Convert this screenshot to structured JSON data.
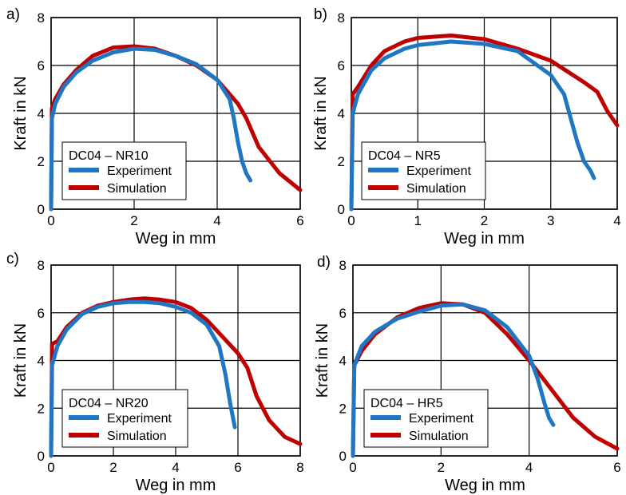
{
  "colors": {
    "experiment": "#1f77c4",
    "simulation": "#c00000",
    "grid": "#000000"
  },
  "chart_data": [
    {
      "panel_label": "a)",
      "type": "line",
      "xlabel": "Weg in mm",
      "ylabel": "Kraft in kN",
      "xlim": [
        0,
        6
      ],
      "ylim": [
        0,
        8
      ],
      "xticks": [
        "0",
        "2",
        "4",
        "6"
      ],
      "yticks": [
        "0",
        "2",
        "4",
        "6",
        "8"
      ],
      "grid": true,
      "legend_title": "DC04 – NR10",
      "legend_position": "bottom-left",
      "series": [
        {
          "name": "Experiment",
          "color": "#1f77c4",
          "x": [
            0,
            0.02,
            0.1,
            0.3,
            0.6,
            1.0,
            1.5,
            2.0,
            2.5,
            3.0,
            3.5,
            4.0,
            4.3,
            4.4,
            4.5,
            4.6,
            4.7,
            4.8
          ],
          "y": [
            0,
            3.8,
            4.4,
            5.1,
            5.7,
            6.2,
            6.55,
            6.7,
            6.65,
            6.4,
            6.05,
            5.4,
            4.6,
            3.8,
            2.8,
            2.0,
            1.5,
            1.2
          ]
        },
        {
          "name": "Simulation",
          "color": "#c00000",
          "x": [
            0,
            0.02,
            0.1,
            0.3,
            0.6,
            1.0,
            1.5,
            2.0,
            2.5,
            3.0,
            3.5,
            4.0,
            4.3,
            4.5,
            4.7,
            5.0,
            5.5,
            6.0
          ],
          "y": [
            0,
            4.2,
            4.6,
            5.2,
            5.8,
            6.4,
            6.75,
            6.8,
            6.7,
            6.4,
            6.0,
            5.4,
            4.8,
            4.4,
            3.8,
            2.6,
            1.5,
            0.8
          ]
        }
      ]
    },
    {
      "panel_label": "b)",
      "type": "line",
      "xlabel": "Weg in mm",
      "ylabel": "Kraft in kN",
      "xlim": [
        0,
        4
      ],
      "ylim": [
        0,
        8
      ],
      "xticks": [
        "0",
        "1",
        "2",
        "3",
        "4"
      ],
      "yticks": [
        "0",
        "2",
        "4",
        "6",
        "8"
      ],
      "grid": true,
      "legend_title": "DC04 – NR5",
      "legend_position": "bottom-left",
      "series": [
        {
          "name": "Experiment",
          "color": "#1f77c4",
          "x": [
            0,
            0.02,
            0.1,
            0.3,
            0.5,
            0.8,
            1.0,
            1.5,
            2.0,
            2.5,
            3.0,
            3.2,
            3.3,
            3.4,
            3.5,
            3.6,
            3.65
          ],
          "y": [
            0,
            4.0,
            4.8,
            5.8,
            6.3,
            6.7,
            6.85,
            7.0,
            6.9,
            6.6,
            5.6,
            4.8,
            3.8,
            2.8,
            2.0,
            1.6,
            1.3
          ]
        },
        {
          "name": "Simulation",
          "color": "#c00000",
          "x": [
            0,
            0.02,
            0.1,
            0.3,
            0.5,
            0.8,
            1.0,
            1.5,
            2.0,
            2.5,
            3.0,
            3.5,
            3.7,
            3.85,
            4.0
          ],
          "y": [
            0,
            4.8,
            5.1,
            6.0,
            6.6,
            7.0,
            7.15,
            7.25,
            7.1,
            6.7,
            6.2,
            5.3,
            4.9,
            4.1,
            3.5
          ]
        }
      ]
    },
    {
      "panel_label": "c)",
      "type": "line",
      "xlabel": "Weg in mm",
      "ylabel": "Kraft in kN",
      "xlim": [
        0,
        8
      ],
      "ylim": [
        0,
        8
      ],
      "xticks": [
        "0",
        "2",
        "4",
        "6",
        "8"
      ],
      "yticks": [
        "0",
        "2",
        "4",
        "6",
        "8"
      ],
      "grid": true,
      "legend_title": "DC04 – NR20",
      "legend_position": "bottom-left",
      "series": [
        {
          "name": "Experiment",
          "color": "#1f77c4",
          "x": [
            0,
            0.03,
            0.2,
            0.5,
            1.0,
            1.5,
            2.0,
            2.5,
            3.0,
            3.5,
            4.0,
            4.5,
            5.0,
            5.4,
            5.6,
            5.75,
            5.9
          ],
          "y": [
            0,
            3.8,
            4.6,
            5.3,
            5.95,
            6.25,
            6.4,
            6.45,
            6.45,
            6.4,
            6.25,
            6.0,
            5.5,
            4.6,
            3.4,
            2.2,
            1.2
          ]
        },
        {
          "name": "Simulation",
          "color": "#c00000",
          "x": [
            0,
            0.03,
            0.2,
            0.5,
            1.0,
            1.5,
            2.0,
            2.5,
            3.0,
            3.5,
            4.0,
            4.5,
            5.0,
            5.5,
            6.0,
            6.3,
            6.6,
            7.0,
            7.5,
            8.0
          ],
          "y": [
            0,
            4.7,
            4.8,
            5.4,
            6.0,
            6.3,
            6.45,
            6.55,
            6.6,
            6.55,
            6.45,
            6.2,
            5.7,
            5.0,
            4.3,
            3.7,
            2.5,
            1.5,
            0.8,
            0.5
          ]
        }
      ]
    },
    {
      "panel_label": "d)",
      "type": "line",
      "xlabel": "Weg in mm",
      "ylabel": "Kraft in kN",
      "xlim": [
        0,
        6
      ],
      "ylim": [
        0,
        8
      ],
      "xticks": [
        "0",
        "2",
        "4",
        "6"
      ],
      "yticks": [
        "0",
        "2",
        "4",
        "6",
        "8"
      ],
      "grid": true,
      "legend_title": "DC04 – HR5",
      "legend_position": "bottom-left",
      "series": [
        {
          "name": "Experiment",
          "color": "#1f77c4",
          "x": [
            0,
            0.03,
            0.2,
            0.5,
            1.0,
            1.5,
            2.0,
            2.5,
            3.0,
            3.5,
            4.0,
            4.2,
            4.35,
            4.45,
            4.55
          ],
          "y": [
            0,
            3.8,
            4.6,
            5.2,
            5.75,
            6.05,
            6.3,
            6.35,
            6.1,
            5.4,
            4.2,
            3.2,
            2.2,
            1.6,
            1.3
          ]
        },
        {
          "name": "Simulation",
          "color": "#c00000",
          "x": [
            0,
            0.03,
            0.2,
            0.5,
            1.0,
            1.5,
            2.0,
            2.5,
            3.0,
            3.5,
            4.0,
            4.5,
            5.0,
            5.5,
            6.0
          ],
          "y": [
            0,
            3.8,
            4.4,
            5.1,
            5.8,
            6.2,
            6.4,
            6.35,
            6.0,
            5.1,
            4.0,
            2.8,
            1.6,
            0.8,
            0.3
          ]
        }
      ]
    }
  ]
}
